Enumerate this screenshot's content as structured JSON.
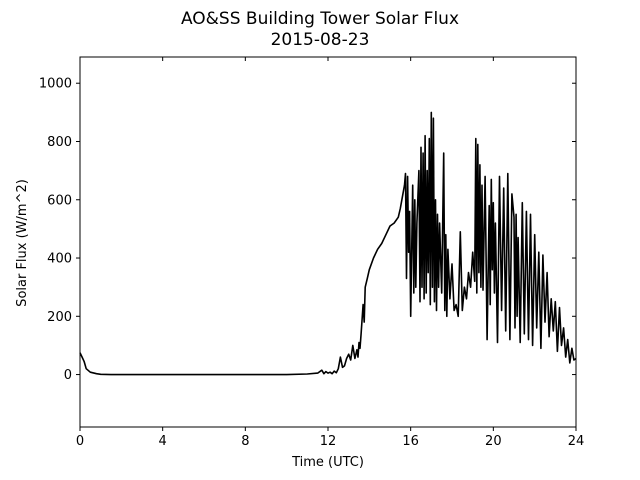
{
  "chart_data": {
    "type": "line",
    "title": "AO&SS Building Tower Solar Flux",
    "subtitle": "2015-08-23",
    "xlabel": "Time (UTC)",
    "ylabel": "Solar Flux (W/m^2)",
    "xlim": [
      0,
      24
    ],
    "ylim": [
      -180,
      1090
    ],
    "xticks": [
      0,
      4,
      8,
      12,
      16,
      20,
      24
    ],
    "yticks": [
      0,
      200,
      400,
      600,
      800,
      1000
    ],
    "grid": false,
    "line_color": "#000000",
    "series": [
      {
        "x": [
          0,
          0.1,
          0.2,
          0.3,
          0.5,
          0.8,
          1.0,
          1.5,
          2,
          4,
          6,
          8,
          10,
          11,
          11.5,
          11.7,
          11.8,
          11.9,
          12.0,
          12.1,
          12.2,
          12.3,
          12.4,
          12.5,
          12.6,
          12.7,
          12.8,
          12.9,
          13.0,
          13.1,
          13.2,
          13.3,
          13.4,
          13.45,
          13.5,
          13.55,
          13.6,
          13.7,
          13.75,
          13.8,
          13.9,
          14.0,
          14.2,
          14.4,
          14.6,
          14.8,
          15.0,
          15.2,
          15.4,
          15.5,
          15.6,
          15.7,
          15.75,
          15.8,
          15.85,
          15.9,
          15.95,
          16.0,
          16.1,
          16.15,
          16.2,
          16.25,
          16.3,
          16.4,
          16.45,
          16.5,
          16.55,
          16.6,
          16.65,
          16.7,
          16.75,
          16.8,
          16.85,
          16.9,
          16.95,
          17.0,
          17.05,
          17.1,
          17.15,
          17.2,
          17.25,
          17.3,
          17.35,
          17.4,
          17.5,
          17.6,
          17.65,
          17.7,
          17.75,
          17.8,
          17.9,
          18.0,
          18.1,
          18.2,
          18.3,
          18.4,
          18.5,
          18.6,
          18.7,
          18.8,
          18.9,
          19.0,
          19.1,
          19.15,
          19.2,
          19.25,
          19.3,
          19.35,
          19.4,
          19.45,
          19.5,
          19.6,
          19.7,
          19.8,
          19.85,
          19.9,
          19.95,
          20.0,
          20.05,
          20.1,
          20.2,
          20.3,
          20.4,
          20.5,
          20.6,
          20.7,
          20.8,
          20.9,
          21.0,
          21.05,
          21.1,
          21.15,
          21.2,
          21.3,
          21.4,
          21.5,
          21.6,
          21.7,
          21.8,
          21.9,
          22.0,
          22.1,
          22.2,
          22.3,
          22.4,
          22.5,
          22.6,
          22.7,
          22.8,
          22.9,
          23.0,
          23.1,
          23.2,
          23.3,
          23.4,
          23.5,
          23.6,
          23.7,
          23.8,
          23.9,
          24.0
        ],
        "y": [
          75,
          60,
          45,
          20,
          8,
          3,
          1,
          0,
          0,
          0,
          0,
          0,
          0,
          2,
          5,
          15,
          3,
          10,
          5,
          8,
          3,
          12,
          6,
          20,
          60,
          25,
          30,
          55,
          70,
          50,
          100,
          55,
          85,
          60,
          110,
          90,
          140,
          240,
          180,
          300,
          330,
          360,
          400,
          430,
          450,
          480,
          510,
          520,
          540,
          570,
          610,
          650,
          690,
          330,
          680,
          420,
          560,
          200,
          650,
          280,
          600,
          300,
          520,
          700,
          250,
          780,
          300,
          760,
          260,
          820,
          280,
          700,
          350,
          810,
          240,
          900,
          300,
          880,
          250,
          600,
          220,
          550,
          300,
          520,
          280,
          760,
          220,
          480,
          200,
          430,
          260,
          380,
          220,
          240,
          200,
          490,
          220,
          300,
          260,
          350,
          300,
          420,
          320,
          810,
          280,
          790,
          350,
          720,
          300,
          650,
          290,
          680,
          120,
          580,
          240,
          670,
          360,
          590,
          280,
          520,
          110,
          680,
          220,
          640,
          150,
          690,
          120,
          620,
          540,
          160,
          550,
          200,
          470,
          110,
          590,
          140,
          560,
          120,
          550,
          100,
          480,
          160,
          420,
          90,
          410,
          180,
          350,
          130,
          260,
          150,
          250,
          80,
          230,
          100,
          160,
          60,
          120,
          40,
          90,
          50,
          55
        ]
      }
    ]
  }
}
